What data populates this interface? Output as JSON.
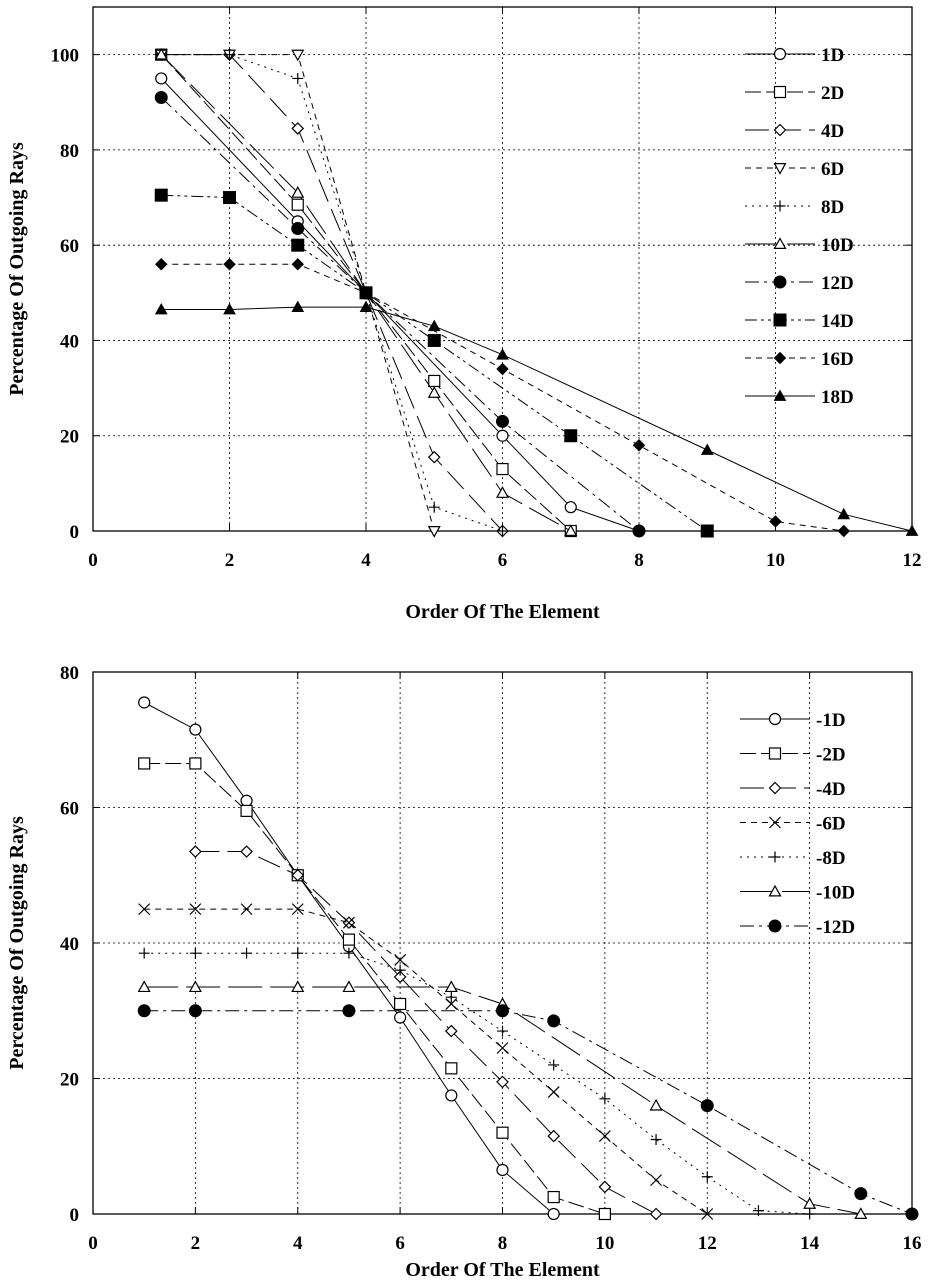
{
  "chart_data": [
    {
      "type": "line",
      "title": "",
      "xlabel": "Order Of The Element",
      "ylabel": "Percentage Of Outgoing Rays",
      "xlim": [
        0,
        12
      ],
      "ylim": [
        0,
        110
      ],
      "xticks": [
        0,
        2,
        4,
        6,
        8,
        10,
        12
      ],
      "yticks": [
        0,
        20,
        40,
        60,
        80,
        100
      ],
      "grid": true,
      "legend_position": "top-right",
      "series": [
        {
          "name": "1D",
          "marker": "circle-open",
          "dash": "solid",
          "x": [
            1,
            3,
            4,
            6,
            7,
            8
          ],
          "y": [
            95,
            65,
            50,
            20,
            5,
            0
          ]
        },
        {
          "name": "2D",
          "marker": "square-open",
          "dash": "mdash",
          "x": [
            1,
            3,
            4,
            5,
            6,
            7
          ],
          "y": [
            100,
            68.5,
            50,
            31.5,
            13,
            0
          ]
        },
        {
          "name": "4D",
          "marker": "diamond-open",
          "dash": "ldash",
          "x": [
            1,
            2,
            3,
            4,
            5,
            6
          ],
          "y": [
            100,
            100,
            84.5,
            50,
            15.5,
            0
          ]
        },
        {
          "name": "6D",
          "marker": "triangle-down-open",
          "dash": "sdash",
          "x": [
            1,
            2,
            3,
            4,
            5
          ],
          "y": [
            100,
            100,
            100,
            50,
            0
          ]
        },
        {
          "name": "8D",
          "marker": "plus",
          "dash": "dot",
          "x": [
            1,
            2,
            3,
            4,
            5,
            6
          ],
          "y": [
            100,
            100,
            95,
            50,
            5,
            0
          ]
        },
        {
          "name": "10D",
          "marker": "triangle-open",
          "dash": "longdash",
          "x": [
            1,
            3,
            4,
            5,
            6,
            7
          ],
          "y": [
            100,
            71,
            50,
            29,
            8,
            0
          ]
        },
        {
          "name": "12D",
          "marker": "circle-filled",
          "dash": "dashdot",
          "x": [
            1,
            3,
            4,
            6,
            8
          ],
          "y": [
            91,
            63.5,
            50,
            23,
            0
          ]
        },
        {
          "name": "14D",
          "marker": "square-filled",
          "dash": "dashdotdot",
          "x": [
            1,
            2,
            3,
            4,
            5,
            7,
            9
          ],
          "y": [
            70.5,
            70,
            60,
            50,
            40,
            20,
            0
          ]
        },
        {
          "name": "16D",
          "marker": "diamond-filled",
          "dash": "sdash",
          "x": [
            1,
            2,
            3,
            4,
            6,
            8,
            10,
            11
          ],
          "y": [
            56,
            56,
            56,
            50,
            34,
            18,
            2,
            0
          ]
        },
        {
          "name": "18D",
          "marker": "triangle-filled",
          "dash": "solid",
          "x": [
            1,
            2,
            3,
            4,
            5,
            6,
            9,
            11,
            12
          ],
          "y": [
            46.5,
            46.5,
            47,
            47,
            43,
            37,
            17,
            3.5,
            0
          ]
        }
      ]
    },
    {
      "type": "line",
      "title": "",
      "xlabel": "Order Of The Element",
      "ylabel": "Percentage Of Outgoing Rays",
      "xlim": [
        0,
        16
      ],
      "ylim": [
        0,
        80
      ],
      "xticks": [
        0,
        2,
        4,
        6,
        8,
        10,
        12,
        14,
        16
      ],
      "yticks": [
        0,
        20,
        40,
        60,
        80
      ],
      "grid": true,
      "legend_position": "top-right",
      "series": [
        {
          "name": "-1D",
          "marker": "circle-open",
          "dash": "solid",
          "x": [
            1,
            2,
            3,
            4,
            5,
            6,
            7,
            8,
            9
          ],
          "y": [
            75.5,
            71.5,
            61,
            50,
            39.5,
            29,
            17.5,
            6.5,
            0
          ]
        },
        {
          "name": "-2D",
          "marker": "square-open",
          "dash": "mdash",
          "x": [
            1,
            2,
            3,
            4,
            5,
            6,
            7,
            8,
            9,
            10
          ],
          "y": [
            66.5,
            66.5,
            59.5,
            50,
            40.5,
            31,
            21.5,
            12,
            2.5,
            0
          ]
        },
        {
          "name": "-4D",
          "marker": "diamond-open",
          "dash": "ldash",
          "x": [
            2,
            3,
            4,
            5,
            6,
            7,
            8,
            9,
            10,
            11
          ],
          "y": [
            53.5,
            53.5,
            50,
            43,
            35,
            27,
            19.5,
            11.5,
            4,
            0
          ]
        },
        {
          "name": "-6D",
          "marker": "x",
          "dash": "sdash",
          "x": [
            1,
            2,
            3,
            4,
            5,
            6,
            7,
            8,
            9,
            10,
            11,
            12
          ],
          "y": [
            45,
            45,
            45,
            45,
            43,
            37.5,
            31,
            24.5,
            18,
            11.5,
            5,
            0
          ]
        },
        {
          "name": "-8D",
          "marker": "plus",
          "dash": "dot",
          "x": [
            1,
            2,
            3,
            4,
            5,
            6,
            7,
            8,
            9,
            10,
            11,
            12,
            13,
            14
          ],
          "y": [
            38.5,
            38.5,
            38.5,
            38.5,
            38.5,
            36,
            32,
            27,
            22,
            17,
            11,
            5.5,
            0.5,
            0
          ]
        },
        {
          "name": "-10D",
          "marker": "triangle-open",
          "dash": "longdash",
          "x": [
            1,
            2,
            4,
            5,
            7,
            8,
            11,
            14,
            15
          ],
          "y": [
            33.5,
            33.5,
            33.5,
            33.5,
            33.5,
            31,
            16,
            1.5,
            0
          ]
        },
        {
          "name": "-12D",
          "marker": "circle-filled",
          "dash": "dashdot",
          "x": [
            1,
            2,
            5,
            8,
            9,
            12,
            15,
            16
          ],
          "y": [
            30,
            30,
            30,
            30,
            28.5,
            16,
            3,
            0
          ]
        }
      ]
    }
  ]
}
